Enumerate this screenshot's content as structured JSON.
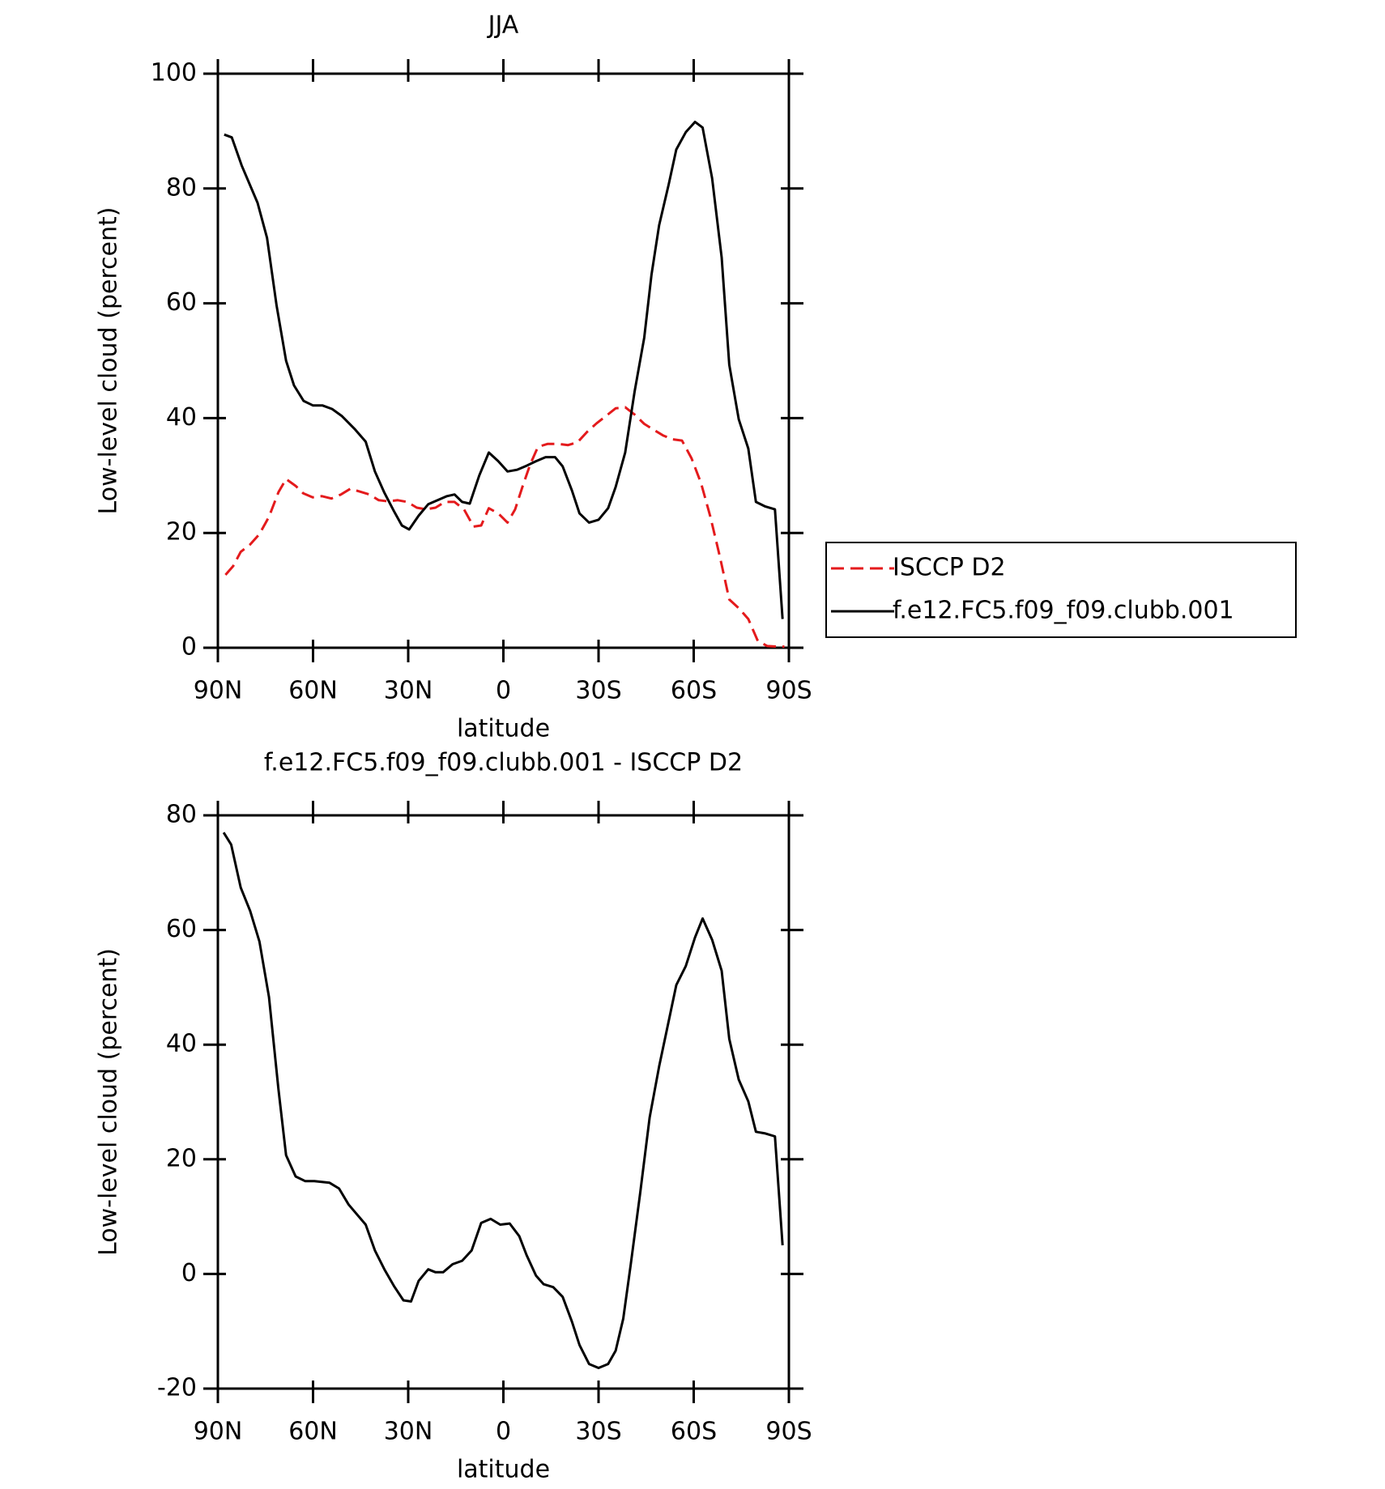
{
  "chart_data": [
    {
      "type": "line",
      "title": "JJA",
      "xlabel": "latitude",
      "ylabel": "Low-level cloud (percent)",
      "xlim": [
        90,
        -90
      ],
      "xticks": [
        {
          "value": 90,
          "label": "90N"
        },
        {
          "value": 60,
          "label": "60N"
        },
        {
          "value": 30,
          "label": "30N"
        },
        0,
        {
          "value": -30,
          "label": "30S"
        },
        {
          "value": -60,
          "label": "60S"
        },
        {
          "value": -90,
          "label": "90S"
        }
      ],
      "ylim": [
        0,
        100
      ],
      "yticks": [
        0,
        20,
        40,
        60,
        80,
        100
      ],
      "legend": "outside-right",
      "series": [
        {
          "name": "ISCCP D2",
          "color": "#e41a1c",
          "dashed": true,
          "x": [
            87.6,
            85.2,
            82.8,
            79.8,
            76.9,
            73.9,
            70.9,
            68.5,
            65.5,
            63.1,
            60.1,
            57.2,
            54.2,
            51.2,
            48.2,
            45.2,
            42.2,
            39.3,
            36.3,
            33.3,
            30.3,
            27.3,
            24.4,
            21.4,
            18.4,
            15.4,
            12.4,
            9.4,
            7,
            4.6,
            1.6,
            -1.3,
            -3.7,
            -6.1,
            -8.5,
            -10.9,
            -13.9,
            -17.5,
            -20.4,
            -23.4,
            -26.4,
            -29.4,
            -32.4,
            -35.4,
            -38.4,
            -41.4,
            -44.4,
            -47.3,
            -50.3,
            -53.3,
            -56.3,
            -59.3,
            -62.3,
            -65.2,
            -68.2,
            -71.2,
            -74.2,
            -77.2,
            -80.2,
            -83.2,
            -86.2,
            -88.6
          ],
          "values": [
            12.7,
            14.2,
            16.7,
            18,
            19.8,
            22.8,
            27.1,
            29.4,
            28.2,
            26.9,
            26.2,
            26.4,
            26,
            26.7,
            27.7,
            27.2,
            26.7,
            25.7,
            25.5,
            25.7,
            25.4,
            24.4,
            24.1,
            24.4,
            25.4,
            25.4,
            24.1,
            21.1,
            21.3,
            24.3,
            23.4,
            21.8,
            24.1,
            28.2,
            32,
            35,
            35.5,
            35.5,
            35.3,
            35.8,
            37.6,
            39.1,
            40.4,
            41.7,
            41.9,
            40.6,
            39,
            38,
            37,
            36.3,
            36.1,
            33,
            28.7,
            22.9,
            16,
            8.4,
            6.9,
            5,
            1.2,
            0.3,
            0.2,
            0.2
          ]
        },
        {
          "name": "f.e12.FC5.f09_f09.clubb.001",
          "color": "#000000",
          "dashed": false,
          "x": [
            88,
            85.6,
            82.5,
            77.5,
            74.5,
            71.5,
            68.5,
            66,
            63,
            60,
            57,
            54,
            51,
            46.7,
            43.4,
            40.5,
            37.5,
            34.5,
            32,
            29.7,
            26.7,
            23.7,
            17.8,
            15.4,
            13,
            10.6,
            7.6,
            4.6,
            1.6,
            -1.3,
            -4.3,
            -7.3,
            -10.3,
            -13.3,
            -16.3,
            -18.7,
            -21.6,
            -24,
            -27,
            -30,
            -33,
            -35.4,
            -38.4,
            -41.4,
            -44.4,
            -46.7,
            -49.1,
            -52.1,
            -54.5,
            -57.5,
            -60.4,
            -62.8,
            -65.8,
            -68.8,
            -71.2,
            -74.2,
            -77.2,
            -79.6,
            -82.6,
            -85.6,
            -88
          ],
          "values": [
            89.4,
            88.9,
            84,
            77.5,
            71.4,
            59.6,
            50,
            45.7,
            43,
            42.2,
            42.2,
            41.6,
            40.4,
            38,
            35.9,
            30.7,
            27,
            23.8,
            21.3,
            20.6,
            23,
            25,
            26.4,
            26.7,
            25.4,
            25.1,
            30,
            34,
            32.5,
            30.7,
            31,
            31.7,
            32.5,
            33.2,
            33.2,
            31.6,
            27.4,
            23.4,
            21.8,
            22.3,
            24.3,
            28,
            34,
            44.7,
            54,
            65,
            73.6,
            80.7,
            86.8,
            89.8,
            91.6,
            90.6,
            81.8,
            68,
            49.3,
            39.8,
            34.7,
            25.4,
            24.6,
            24.1,
            5
          ]
        }
      ]
    },
    {
      "type": "line",
      "title": "f.e12.FC5.f09_f09.clubb.001 - ISCCP D2",
      "xlabel": "latitude",
      "ylabel": "Low-level cloud (percent)",
      "xlim": [
        90,
        -90
      ],
      "xticks": [
        {
          "value": 90,
          "label": "90N"
        },
        {
          "value": 60,
          "label": "60N"
        },
        {
          "value": 30,
          "label": "30N"
        },
        0,
        {
          "value": -30,
          "label": "30S"
        },
        {
          "value": -60,
          "label": "60S"
        },
        {
          "value": -90,
          "label": "90S"
        }
      ],
      "ylim": [
        -20,
        80
      ],
      "yticks": [
        -20,
        0,
        20,
        40,
        60,
        80
      ],
      "series": [
        {
          "color": "#000000",
          "dashed": false,
          "x": [
            88.2,
            85.8,
            82.8,
            79.8,
            76.9,
            73.9,
            70.9,
            68.5,
            65.5,
            62.5,
            59.6,
            54.8,
            51.8,
            48.8,
            43.4,
            40.5,
            37.5,
            34.5,
            31.5,
            29.1,
            26.7,
            23.7,
            21.4,
            19,
            16,
            13,
            10,
            7,
            4,
            1,
            -2,
            -5,
            -7.3,
            -10.3,
            -12.7,
            -15.7,
            -18.7,
            -21.6,
            -24,
            -27,
            -30,
            -33,
            -35.4,
            -37.8,
            -40.1,
            -43.1,
            -46.1,
            -49.1,
            -52.1,
            -54.5,
            -57.5,
            -60.4,
            -62.8,
            -65.8,
            -68.8,
            -71.2,
            -74.2,
            -77.2,
            -79.6,
            -82.6,
            -85.6,
            -88
          ],
          "values": [
            77,
            74.9,
            67.4,
            63.3,
            58,
            48.3,
            32.2,
            20.7,
            17,
            16.2,
            16.2,
            15.9,
            14.9,
            12.1,
            8.6,
            4.1,
            0.8,
            -2.1,
            -4.6,
            -4.8,
            -1.2,
            0.8,
            0.3,
            0.3,
            1.7,
            2.3,
            4.1,
            8.9,
            9.6,
            8.6,
            8.8,
            6.6,
            3.3,
            -0.3,
            -1.8,
            -2.3,
            -4,
            -8.3,
            -12.4,
            -15.7,
            -16.4,
            -15.7,
            -13.4,
            -7.8,
            1.5,
            14,
            27.3,
            36.2,
            44.1,
            50.4,
            53.7,
            58.7,
            62,
            58.3,
            52.9,
            41,
            33.9,
            30.1,
            24.8,
            24.5,
            24,
            5
          ]
        }
      ]
    }
  ]
}
